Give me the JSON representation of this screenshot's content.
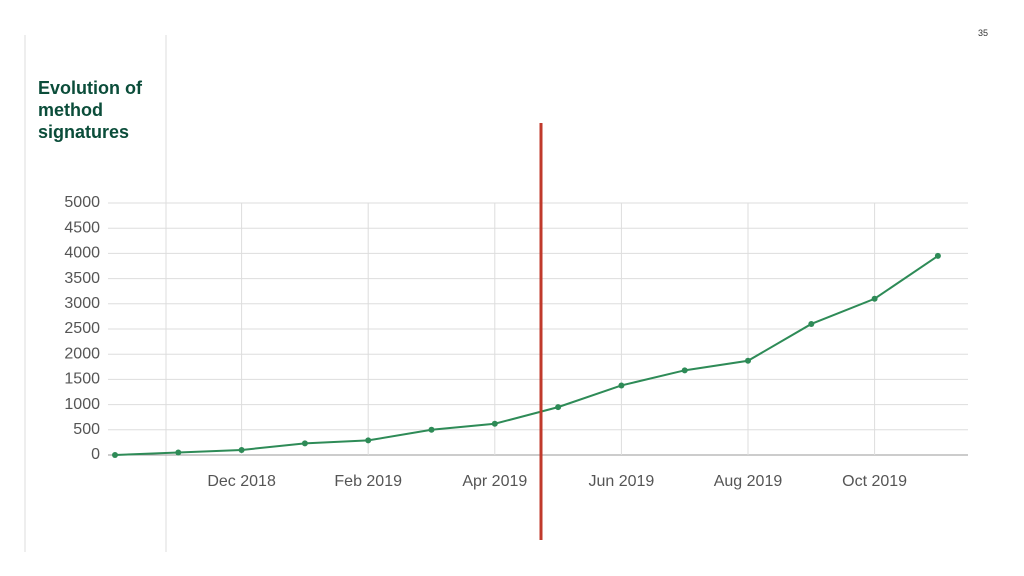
{
  "page_number": "35",
  "chart_data": {
    "type": "line",
    "title": "Evolution of method signatures",
    "x": [
      "2018-10",
      "2018-11",
      "2018-12",
      "2019-01",
      "2019-02",
      "2019-03",
      "2019-04",
      "2019-05",
      "2019-06",
      "2019-07",
      "2019-08",
      "2019-09",
      "2019-10",
      "2019-11"
    ],
    "values": [
      0,
      50,
      100,
      230,
      290,
      500,
      620,
      950,
      1380,
      1680,
      1870,
      2600,
      3100,
      3950
    ],
    "color": "#2e8b57",
    "ylim": [
      0,
      5000
    ],
    "yticks": [
      0,
      500,
      1000,
      1500,
      2000,
      2500,
      3000,
      3500,
      4000,
      4500,
      5000
    ],
    "xticks": [
      {
        "value": "2018-12",
        "label": "Dec 2018"
      },
      {
        "value": "2019-02",
        "label": "Feb 2019"
      },
      {
        "value": "2019-04",
        "label": "Apr 2019"
      },
      {
        "value": "2019-06",
        "label": "Jun 2019"
      },
      {
        "value": "2019-08",
        "label": "Aug 2019"
      },
      {
        "value": "2019-10",
        "label": "Oct 2019"
      }
    ],
    "grid": true
  }
}
